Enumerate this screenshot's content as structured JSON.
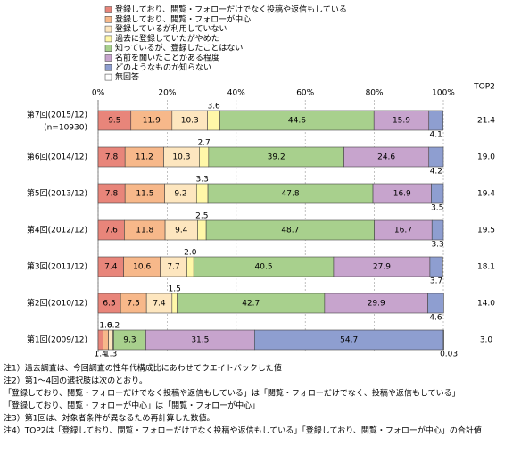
{
  "chart_data": {
    "type": "stacked-bar-100",
    "categories": [
      "第7回(2015/12)",
      "第6回(2014/12)",
      "第5回(2013/12)",
      "第4回(2012/12)",
      "第3回(2011/12)",
      "第2回(2010/12)",
      "第1回(2009/12)"
    ],
    "sample_note": "(n=10930)",
    "xlim": [
      0,
      100
    ],
    "xticks": [
      {
        "value": 0,
        "label": "0%"
      },
      {
        "value": 20,
        "label": "20%"
      },
      {
        "value": 40,
        "label": "40%"
      },
      {
        "value": 60,
        "label": "60%"
      },
      {
        "value": 80,
        "label": "80%"
      },
      {
        "value": 100,
        "label": "100%"
      }
    ],
    "grid": true,
    "series": [
      {
        "name": "登録しており、閲覧・フォローだけでなく投稿や返信もしている",
        "color": "#e8857a",
        "values": [
          9.5,
          7.8,
          7.8,
          7.6,
          7.4,
          6.5,
          1.4
        ]
      },
      {
        "name": "登録しており、閲覧・フォローが中心",
        "color": "#f7b88a",
        "values": [
          11.9,
          11.2,
          11.5,
          11.8,
          10.6,
          7.5,
          1.6
        ]
      },
      {
        "name": "登録しているが利用していない",
        "color": "#fde6bf",
        "values": [
          10.3,
          10.3,
          9.2,
          9.4,
          7.7,
          7.4,
          1.3
        ]
      },
      {
        "name": "過去に登録していたがやめた",
        "color": "#fff7a8",
        "values": [
          3.6,
          2.7,
          3.3,
          2.5,
          2,
          1.5,
          0.2
        ],
        "value_labels": [
          "3.6",
          "2.7",
          "3.3",
          "2.5",
          "2.0",
          "1.5",
          "0.2"
        ]
      },
      {
        "name": "知っているが、登録したことはない",
        "color": "#a8d08d",
        "values": [
          44.6,
          39.2,
          47.8,
          48.7,
          40.5,
          42.7,
          9.3
        ]
      },
      {
        "name": "名前を聞いたことがある程度",
        "color": "#c7a4cd",
        "values": [
          15.9,
          24.6,
          16.9,
          16.7,
          27.9,
          29.9,
          31.5
        ]
      },
      {
        "name": "どのようなものか知らない",
        "color": "#8e9ed0",
        "values": [
          4.1,
          4.2,
          3.5,
          3.3,
          3.7,
          4.6,
          54.7
        ]
      },
      {
        "name": "無回答",
        "color": "#ffffff",
        "values": [
          null,
          null,
          null,
          null,
          null,
          null,
          0.03
        ]
      }
    ],
    "top2": {
      "title": "TOP2",
      "values": [
        21.4,
        19,
        19.4,
        19.5,
        18.1,
        14,
        3
      ],
      "value_labels": [
        "21.4",
        "19.0",
        "19.4",
        "19.5",
        "18.1",
        "14.0",
        "3.0"
      ]
    },
    "notes": [
      "注1）過去調査は、今回調査の性年代構成比にあわせてウエイトバックした値",
      "注2）第1～4回の選択肢は次のとおり。",
      "「登録しており、閲覧・フォローだけでなく投稿や返信もしている」は「閲覧・フォローだけでなく、投稿や返信もしている」",
      "「登録しており、閲覧・フォローが中心」は「閲覧・フォローが中心」",
      "注3）第1回は、対象者条件が異なるため再計算した数値。",
      "注4）TOP2は「登録しており、閲覧・フォローだけでなく投稿や返信もしている」「登録しており、閲覧・フォローが中心」の合計値"
    ]
  }
}
